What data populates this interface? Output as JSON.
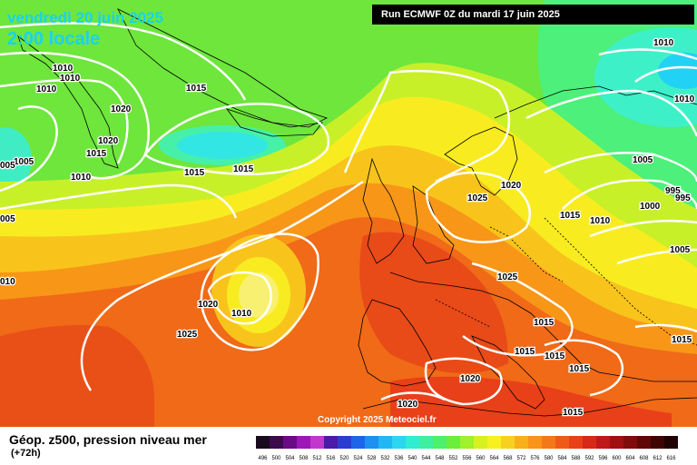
{
  "header": {
    "date_line": "vendredi 20 juin 2025",
    "time_line": "2:00 locale",
    "run_info": "Run ECMWF 0Z du mardi 17 juin 2025"
  },
  "footer": {
    "title": "Géop. z500, pression niveau mer",
    "subtitle": "(+72h)",
    "copyright": "Copyright 2025 Meteociel.fr"
  },
  "legend": {
    "values": [
      "496",
      "500",
      "504",
      "508",
      "512",
      "516",
      "520",
      "524",
      "528",
      "532",
      "536",
      "540",
      "544",
      "548",
      "552",
      "556",
      "560",
      "564",
      "568",
      "572",
      "576",
      "580",
      "584",
      "588",
      "592",
      "596",
      "600",
      "604",
      "608",
      "612",
      "616"
    ],
    "colors": [
      "#1a0a1e",
      "#3d0a4e",
      "#6a0b84",
      "#9b18b6",
      "#c238cc",
      "#4b1aa8",
      "#2a3dd0",
      "#1e64e8",
      "#1e90f0",
      "#20b8f4",
      "#2ad6f0",
      "#30ecd0",
      "#3cf0a0",
      "#4cf06a",
      "#6cee3a",
      "#a0f02a",
      "#d8f020",
      "#f8f020",
      "#f8d020",
      "#f8b018",
      "#f89418",
      "#f47818",
      "#f05a18",
      "#e84018",
      "#d82818",
      "#c01818",
      "#a01010",
      "#800c0c",
      "#600808",
      "#400404",
      "#200202"
    ]
  },
  "pressure_labels": [
    {
      "text": "1010"
    },
    {
      "text": "1010"
    },
    {
      "text": "1010"
    },
    {
      "text": "1015"
    },
    {
      "text": "1020"
    },
    {
      "text": "1020"
    },
    {
      "text": "1015"
    },
    {
      "text": "1005"
    },
    {
      "text": "1010"
    },
    {
      "text": "1015"
    },
    {
      "text": "1015"
    },
    {
      "text": "005"
    },
    {
      "text": "1025"
    },
    {
      "text": "1020"
    },
    {
      "text": "1015"
    },
    {
      "text": "1010"
    },
    {
      "text": "1005"
    },
    {
      "text": "1000"
    },
    {
      "text": "995"
    },
    {
      "text": "995"
    },
    {
      "text": "1005"
    },
    {
      "text": "1010"
    },
    {
      "text": "1010"
    },
    {
      "text": "1020"
    },
    {
      "text": "1010"
    },
    {
      "text": "1025"
    },
    {
      "text": "1025"
    },
    {
      "text": "1015"
    },
    {
      "text": "1015"
    },
    {
      "text": "1015"
    },
    {
      "text": "1015"
    },
    {
      "text": "1015"
    },
    {
      "text": "1020"
    },
    {
      "text": "1020"
    },
    {
      "text": "1015"
    },
    {
      "text": "005"
    },
    {
      "text": "010"
    }
  ]
}
